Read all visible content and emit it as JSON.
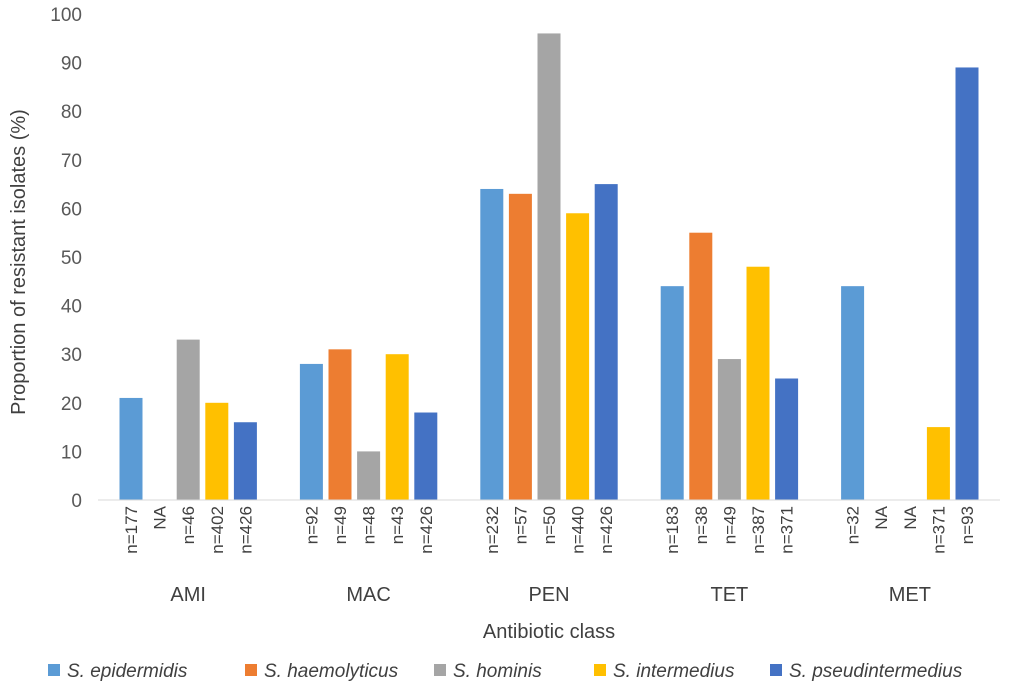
{
  "chart_data": {
    "type": "bar",
    "title": "",
    "xlabel": "Antibiotic class",
    "ylabel": "Proportion of resistant isolates (%)",
    "ylim": [
      0,
      100
    ],
    "yticks": [
      0,
      10,
      20,
      30,
      40,
      50,
      60,
      70,
      80,
      90,
      100
    ],
    "grid": false,
    "legend_position": "bottom",
    "categories": [
      "AMI",
      "MAC",
      "PEN",
      "TET",
      "MET"
    ],
    "series": [
      {
        "name": "S. epidermidis",
        "color": "#5B9BD5",
        "values": [
          21,
          28,
          64,
          44,
          44
        ],
        "n_labels": [
          "n=177",
          "n=92",
          "n=232",
          "n=183",
          "n=32"
        ]
      },
      {
        "name": "S. haemolyticus",
        "color": "#ED7D31",
        "values": [
          null,
          31,
          63,
          55,
          null
        ],
        "n_labels": [
          "NA",
          "n=49",
          "n=57",
          "n=38",
          "NA"
        ]
      },
      {
        "name": "S. hominis",
        "color": "#A5A5A5",
        "values": [
          33,
          10,
          96,
          29,
          null
        ],
        "n_labels": [
          "n=46",
          "n=48",
          "n=50",
          "n=49",
          "NA"
        ]
      },
      {
        "name": "S. intermedius",
        "color": "#FFC000",
        "values": [
          20,
          30,
          59,
          48,
          15
        ],
        "n_labels": [
          "n=402",
          "n=43",
          "n=440",
          "n=387",
          "n=371"
        ]
      },
      {
        "name": "S. pseudintermedius",
        "color": "#4472C4",
        "values": [
          16,
          18,
          65,
          25,
          89
        ],
        "n_labels": [
          "n=426",
          "n=426",
          "n=426",
          "n=371",
          "n=93"
        ]
      }
    ]
  }
}
